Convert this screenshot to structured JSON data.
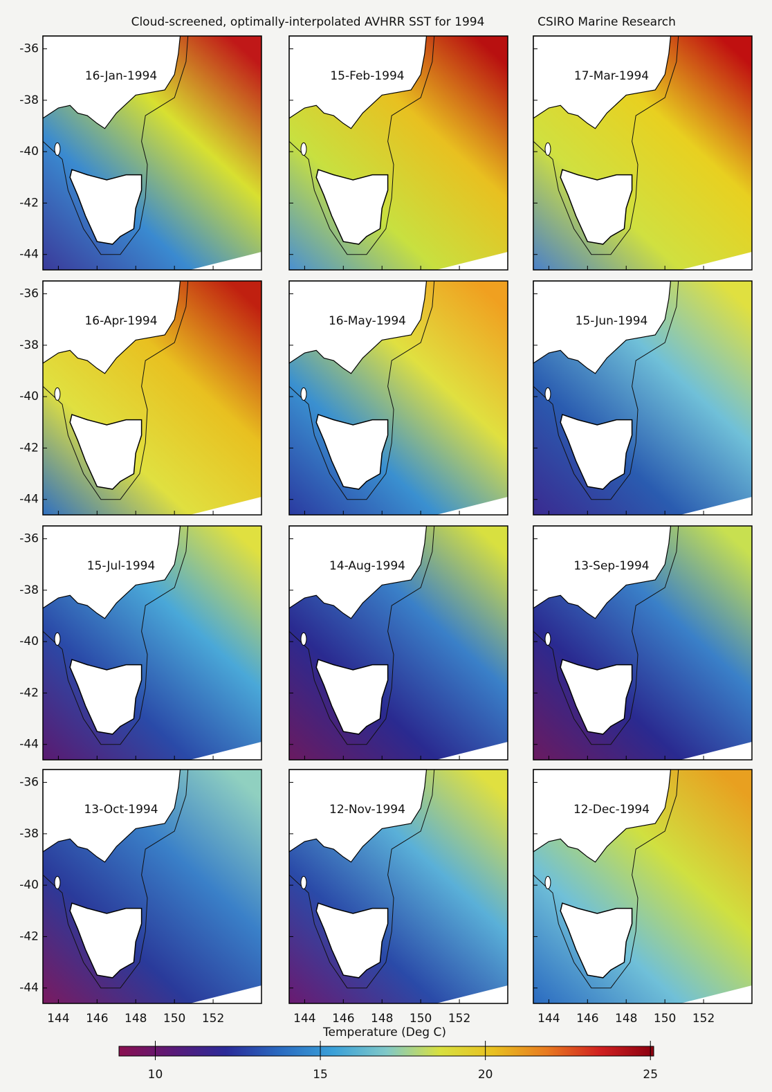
{
  "title": "Cloud-screened, optimally-interpolated AVHRR SST for 1994",
  "credit": "CSIRO Marine Research",
  "panels": [
    "16-Jan-1994",
    "15-Feb-1994",
    "17-Mar-1994",
    "16-Apr-1994",
    "16-May-1994",
    "15-Jun-1994",
    "15-Jul-1994",
    "14-Aug-1994",
    "13-Sep-1994",
    "13-Oct-1994",
    "12-Nov-1994",
    "12-Dec-1994"
  ],
  "map": {
    "xlim": [
      143.2,
      154.5
    ],
    "ylim": [
      -44.6,
      -35.5
    ],
    "xticks": [
      144,
      146,
      148,
      150,
      152
    ],
    "yticks": [
      -36,
      -38,
      -40,
      -42,
      -44
    ]
  },
  "colorbar": {
    "label": "Temperature (Deg C)",
    "lim": [
      8.9,
      25.1
    ],
    "ticks": [
      10,
      15,
      20,
      25
    ]
  }
}
